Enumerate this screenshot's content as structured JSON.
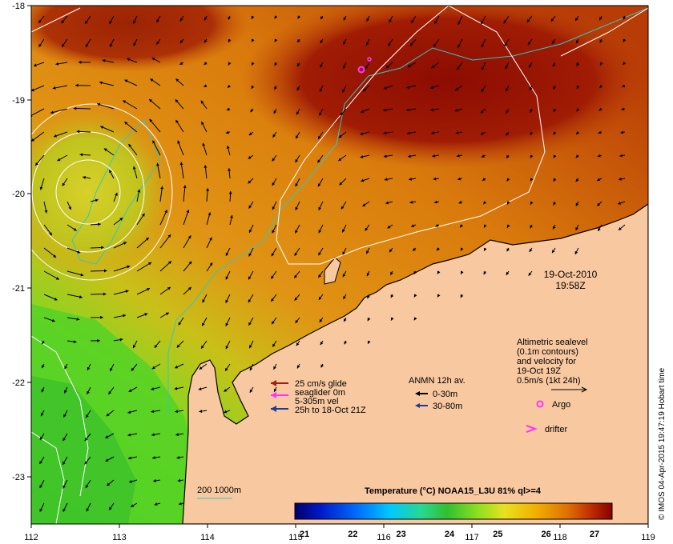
{
  "map": {
    "x_ticks": [
      "112",
      "113",
      "114",
      "115",
      "116",
      "117",
      "118",
      "119"
    ],
    "y_ticks": [
      "-18",
      "-19",
      "-20",
      "-21",
      "-22",
      "-23"
    ],
    "date_line1": "19-Oct-2010",
    "date_line2": "19:58Z",
    "credit": "© IMOS 04-Apr-2015 19:47:19 Hobart time"
  },
  "legend_left": {
    "glide_label": "25 cm/s glide",
    "seaglider_label": "seaglider 0m",
    "vel_label": "5-305m vel",
    "time_label": "25h to 18-Oct 21Z",
    "colors": {
      "glide": "#a41e0c",
      "seaglider": "#ff33ff",
      "vel": "#1a3c9a"
    }
  },
  "legend_anmn": {
    "title": "ANMN 12h av.",
    "shallow": "0-30m",
    "deep": "30-80m"
  },
  "legend_right": {
    "line1": "Altimetric sealevel",
    "line2": "(0.1m contours)",
    "line3": "and velocity for",
    "line4": "19-Oct 19Z",
    "line5": "0.5m/s (1kt 24h)",
    "argo": "Argo",
    "drifter": "drifter"
  },
  "isobath_label": "200  1000m",
  "colorbar": {
    "title": "Temperature (°C) NOAA15_L3U 81% ql>=4",
    "ticks": [
      "21",
      "22",
      "23",
      "24",
      "25",
      "26",
      "27"
    ],
    "stops": [
      "#00006a",
      "#0018c8",
      "#0070ff",
      "#00c8ff",
      "#28d890",
      "#30c030",
      "#90e020",
      "#e8e020",
      "#f0b000",
      "#e07000",
      "#c03000",
      "#8a0000"
    ]
  }
}
